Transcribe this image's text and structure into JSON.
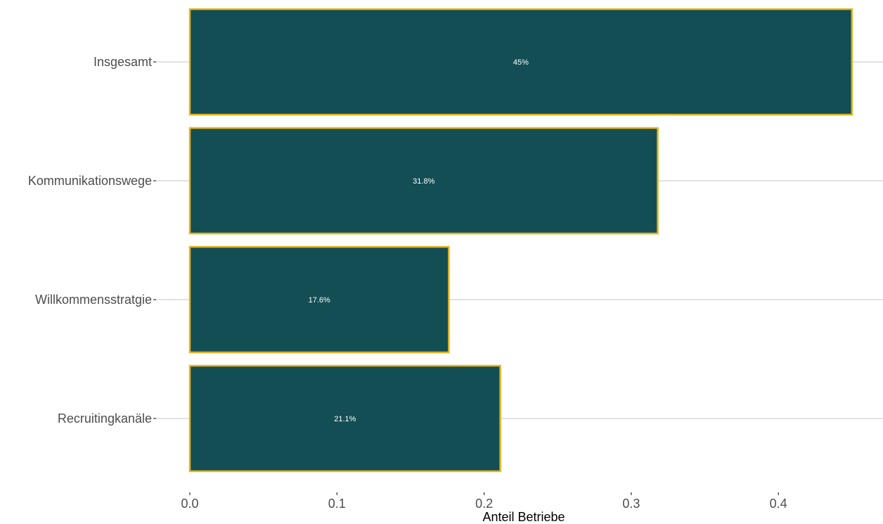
{
  "chart_data": {
    "type": "bar",
    "orientation": "horizontal",
    "categories": [
      "Insgesamt",
      "Kommunikationswege",
      "Willkommensstratgie",
      "Recruitingkanäle"
    ],
    "values": [
      0.45,
      0.318,
      0.176,
      0.211
    ],
    "data_labels": [
      "45%",
      "31.8%",
      "17.6%",
      "21.1%"
    ],
    "xlabel": "Anteil Betriebe",
    "ylabel": "",
    "xlim": [
      0,
      0.47
    ],
    "x_ticks": [
      0.0,
      0.1,
      0.2,
      0.3,
      0.4
    ],
    "x_tick_labels": [
      "0.0",
      "0.1",
      "0.2",
      "0.3",
      "0.4"
    ],
    "grid": true,
    "bar_fill": "#134e55",
    "bar_border": "#e8b21c",
    "grid_color": "#d9d9d9",
    "label_color": "#ffffff"
  }
}
